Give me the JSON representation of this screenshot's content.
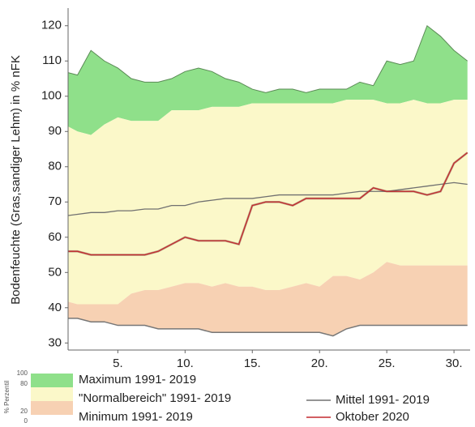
{
  "chart_data": {
    "type": "band-line",
    "ylabel": "Bodenfeuchte (Gras,sandiger Lehm) in % nFK",
    "x": [
      1,
      2,
      3,
      4,
      5,
      6,
      7,
      8,
      9,
      10,
      11,
      12,
      13,
      14,
      15,
      16,
      17,
      18,
      19,
      20,
      21,
      22,
      23,
      24,
      25,
      26,
      27,
      28,
      29,
      30,
      31
    ],
    "xlim": [
      1.3,
      31.2
    ],
    "xticks": [
      {
        "value": 5,
        "label": "5."
      },
      {
        "value": 10,
        "label": "10."
      },
      {
        "value": 15,
        "label": "15."
      },
      {
        "value": 20,
        "label": "20."
      },
      {
        "value": 25,
        "label": "25."
      },
      {
        "value": 30,
        "label": "30."
      }
    ],
    "ylim": [
      28,
      125
    ],
    "yticks": [
      30,
      40,
      50,
      60,
      70,
      80,
      90,
      100,
      110,
      120
    ],
    "grid": false,
    "bands": [
      {
        "name": "Maximum 1991- 2019",
        "color": "#8fe08a",
        "upper": [
          107,
          106,
          113,
          110,
          108,
          105,
          104,
          104,
          105,
          107,
          108,
          107,
          105,
          104,
          102,
          101,
          102,
          102,
          101,
          102,
          102,
          102,
          104,
          103,
          110,
          109,
          110,
          120,
          117,
          113,
          110
        ],
        "lower": [
          92,
          90,
          89,
          92,
          94,
          93,
          93,
          93,
          96,
          96,
          96,
          97,
          97,
          97,
          98,
          98,
          98,
          98,
          98,
          98,
          98,
          99,
          99,
          99,
          98,
          98,
          99,
          98,
          98,
          99,
          99
        ]
      },
      {
        "name": "\"Normalbereich\" 1991- 2019",
        "color": "#fbf8c9",
        "upper": [
          92,
          90,
          89,
          92,
          94,
          93,
          93,
          93,
          96,
          96,
          96,
          97,
          97,
          97,
          98,
          98,
          98,
          98,
          98,
          98,
          98,
          99,
          99,
          99,
          98,
          98,
          99,
          98,
          98,
          99,
          99
        ],
        "lower": [
          42,
          41,
          41,
          41,
          41,
          44,
          45,
          45,
          46,
          47,
          47,
          46,
          47,
          46,
          46,
          45,
          45,
          46,
          47,
          46,
          49,
          49,
          48,
          50,
          53,
          52,
          52,
          52,
          52,
          52,
          52
        ]
      },
      {
        "name": "Minimum 1991- 2019",
        "color": "#f7d1b3",
        "upper": [
          42,
          41,
          41,
          41,
          41,
          44,
          45,
          45,
          46,
          47,
          47,
          46,
          47,
          46,
          46,
          45,
          45,
          46,
          47,
          46,
          49,
          49,
          48,
          50,
          53,
          52,
          52,
          52,
          52,
          52,
          52
        ],
        "lower": [
          37,
          37,
          36,
          36,
          35,
          35,
          35,
          34,
          34,
          34,
          34,
          33,
          33,
          33,
          33,
          33,
          33,
          33,
          33,
          33,
          32,
          34,
          35,
          35,
          35,
          35,
          35,
          35,
          35,
          35,
          35
        ]
      }
    ],
    "series": [
      {
        "name": "Mittel 1991- 2019",
        "color": "#707070",
        "values": [
          66,
          66.5,
          67,
          67,
          67.5,
          67.5,
          68,
          68,
          69,
          69,
          70,
          70.5,
          71,
          71,
          71,
          71.5,
          72,
          72,
          72,
          72,
          72,
          72.5,
          73,
          73,
          73,
          73.5,
          74,
          74.5,
          75,
          75.5,
          75
        ]
      },
      {
        "name": "Oktober 2020",
        "color": "#c42a2e",
        "values": [
          56,
          56,
          55,
          55,
          55,
          55,
          55,
          56,
          58,
          60,
          59,
          59,
          59,
          58,
          69,
          70,
          70,
          69,
          71,
          71,
          71,
          71,
          71,
          74,
          73,
          73,
          73,
          72,
          73,
          81,
          84
        ]
      }
    ],
    "percentile_scale": {
      "label": "% Perzentil",
      "ticks": [
        100,
        80,
        20,
        0
      ]
    }
  }
}
